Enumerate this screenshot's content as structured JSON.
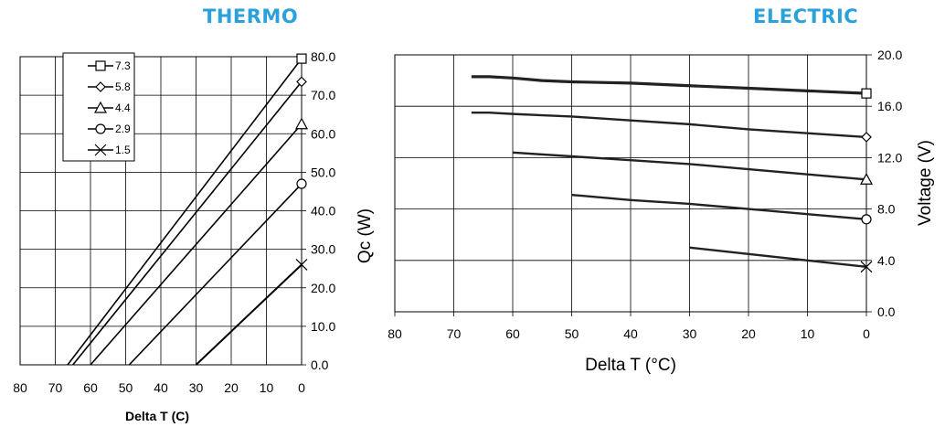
{
  "chart_data": [
    {
      "type": "line",
      "title": "THERMO",
      "xlabel": "Delta T (C)",
      "ylabel": "Qc (W)",
      "xlim": [
        80,
        0
      ],
      "ylim": [
        0,
        80
      ],
      "x_ticks": [
        "80",
        "70",
        "60",
        "50",
        "40",
        "30",
        "20",
        "10",
        "0"
      ],
      "y_ticks": [
        "0.0",
        "10.0",
        "20.0",
        "30.0",
        "40.0",
        "50.0",
        "60.0",
        "70.0",
        "80.0"
      ],
      "grid": true,
      "legend_position": "top-left",
      "series": [
        {
          "name": "7.3",
          "marker": "square",
          "x": [
            0,
            66.5
          ],
          "y": [
            79.5,
            0
          ]
        },
        {
          "name": "5.8",
          "marker": "diamond",
          "x": [
            0,
            65
          ],
          "y": [
            73.5,
            0
          ]
        },
        {
          "name": "4.4",
          "marker": "triangle",
          "x": [
            0,
            60
          ],
          "y": [
            62.5,
            0
          ]
        },
        {
          "name": "2.9",
          "marker": "circle",
          "x": [
            0,
            49
          ],
          "y": [
            47,
            0
          ]
        },
        {
          "name": "1.5",
          "marker": "x",
          "x": [
            0,
            30
          ],
          "y": [
            26,
            0
          ]
        }
      ]
    },
    {
      "type": "line",
      "title": "ELECTRIC",
      "xlabel": "Delta T (°C)",
      "ylabel": "Voltage (V)",
      "xlim": [
        80,
        0
      ],
      "ylim": [
        0,
        20
      ],
      "x_ticks": [
        "80",
        "70",
        "60",
        "50",
        "40",
        "30",
        "20",
        "10",
        "0"
      ],
      "y_ticks": [
        "0.0",
        "4.0",
        "8.0",
        "12.0",
        "16.0",
        "20.0"
      ],
      "grid": true,
      "series": [
        {
          "name": "7.3",
          "marker": "square",
          "x": [
            67,
            64,
            60,
            55,
            50,
            40,
            30,
            20,
            10,
            0
          ],
          "y": [
            18.3,
            18.3,
            18.2,
            18.0,
            17.9,
            17.8,
            17.6,
            17.4,
            17.2,
            17.0
          ]
        },
        {
          "name": "5.8",
          "marker": "diamond",
          "x": [
            67,
            64,
            60,
            55,
            50,
            40,
            30,
            20,
            10,
            0
          ],
          "y": [
            15.5,
            15.5,
            15.4,
            15.3,
            15.2,
            14.9,
            14.6,
            14.2,
            13.9,
            13.6
          ]
        },
        {
          "name": "4.4",
          "marker": "triangle",
          "x": [
            60,
            50,
            40,
            30,
            20,
            10,
            0
          ],
          "y": [
            12.4,
            12.1,
            11.8,
            11.5,
            11.1,
            10.7,
            10.3
          ]
        },
        {
          "name": "2.9",
          "marker": "circle",
          "x": [
            50,
            40,
            30,
            20,
            10,
            0
          ],
          "y": [
            9.1,
            8.7,
            8.4,
            8.0,
            7.6,
            7.2
          ]
        },
        {
          "name": "1.5",
          "marker": "x",
          "x": [
            30,
            20,
            10,
            0
          ],
          "y": [
            5.0,
            4.5,
            4.0,
            3.5
          ]
        }
      ]
    }
  ]
}
